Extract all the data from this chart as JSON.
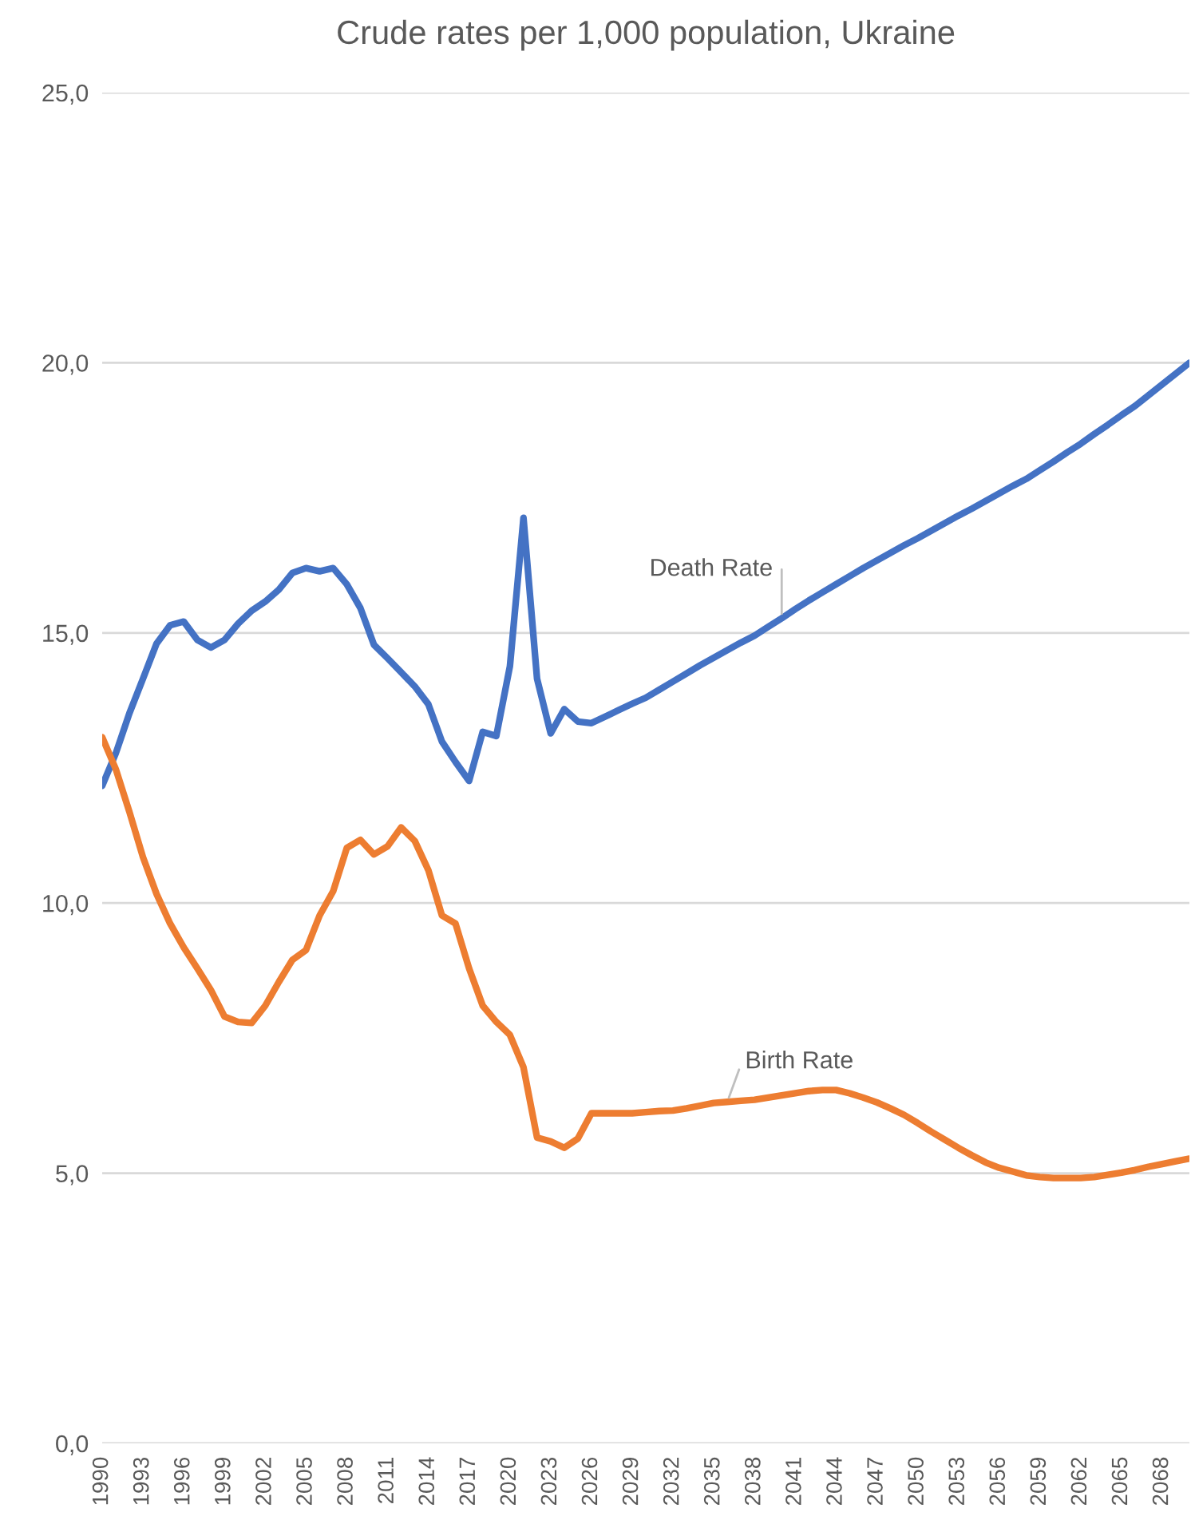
{
  "chart_data": {
    "type": "line",
    "title": "Crude rates per 1,000 population, Ukraine",
    "x": [
      1990,
      1991,
      1992,
      1993,
      1994,
      1995,
      1996,
      1997,
      1998,
      1999,
      2000,
      2001,
      2002,
      2003,
      2004,
      2005,
      2006,
      2007,
      2008,
      2009,
      2010,
      2011,
      2012,
      2013,
      2014,
      2015,
      2016,
      2017,
      2018,
      2019,
      2020,
      2021,
      2022,
      2023,
      2024,
      2025,
      2026,
      2027,
      2028,
      2029,
      2030,
      2031,
      2032,
      2033,
      2034,
      2035,
      2036,
      2037,
      2038,
      2039,
      2040,
      2041,
      2042,
      2043,
      2044,
      2045,
      2046,
      2047,
      2048,
      2049,
      2050,
      2051,
      2052,
      2053,
      2054,
      2055,
      2056,
      2057,
      2058,
      2059,
      2060,
      2061,
      2062,
      2063,
      2064,
      2065,
      2066,
      2067,
      2068,
      2069,
      2070
    ],
    "series": [
      {
        "name": "Death Rate",
        "color": "#4472c4",
        "values": [
          12.17,
          12.77,
          13.51,
          14.15,
          14.8,
          15.14,
          15.21,
          14.87,
          14.73,
          14.87,
          15.17,
          15.41,
          15.58,
          15.8,
          16.11,
          16.2,
          16.14,
          16.2,
          15.9,
          15.46,
          14.78,
          14.53,
          14.27,
          14.01,
          13.68,
          12.99,
          12.61,
          12.26,
          13.17,
          13.09,
          14.38,
          17.13,
          14.15,
          13.14,
          13.59,
          13.36,
          13.33,
          13.45,
          13.57,
          13.69,
          13.8,
          13.95,
          14.1,
          14.25,
          14.4,
          14.54,
          14.68,
          14.82,
          14.95,
          15.11,
          15.27,
          15.44,
          15.6,
          15.75,
          15.9,
          16.05,
          16.2,
          16.34,
          16.48,
          16.62,
          16.75,
          16.89,
          17.03,
          17.17,
          17.3,
          17.44,
          17.58,
          17.72,
          17.85,
          18.01,
          18.17,
          18.34,
          18.5,
          18.68,
          18.85,
          19.03,
          19.2,
          19.4,
          19.6,
          19.8,
          20.0
        ]
      },
      {
        "name": "Birth Rate",
        "color": "#ed7d31",
        "values": [
          13.07,
          12.48,
          11.69,
          10.85,
          10.17,
          9.62,
          9.18,
          8.79,
          8.39,
          7.9,
          7.8,
          7.78,
          8.1,
          8.54,
          8.95,
          9.13,
          9.77,
          10.22,
          11.02,
          11.17,
          10.9,
          11.05,
          11.4,
          11.15,
          10.61,
          9.77,
          9.62,
          8.79,
          8.1,
          7.8,
          7.56,
          6.96,
          5.66,
          5.59,
          5.47,
          5.64,
          6.11,
          6.11,
          6.11,
          6.11,
          6.13,
          6.15,
          6.16,
          6.2,
          6.25,
          6.3,
          6.32,
          6.34,
          6.36,
          6.4,
          6.44,
          6.48,
          6.52,
          6.54,
          6.54,
          6.48,
          6.4,
          6.31,
          6.2,
          6.08,
          5.93,
          5.77,
          5.62,
          5.47,
          5.33,
          5.2,
          5.1,
          5.03,
          4.96,
          4.93,
          4.91,
          4.91,
          4.91,
          4.93,
          4.97,
          5.01,
          5.06,
          5.12,
          5.17,
          5.22,
          5.27
        ]
      }
    ],
    "xlim": [
      1990,
      2070
    ],
    "xticks": [
      1990,
      1993,
      1996,
      1999,
      2002,
      2005,
      2008,
      2011,
      2014,
      2017,
      2020,
      2023,
      2026,
      2029,
      2032,
      2035,
      2038,
      2041,
      2044,
      2047,
      2050,
      2053,
      2056,
      2059,
      2062,
      2065,
      2068
    ],
    "ylim": [
      0,
      25
    ],
    "yticks": [
      {
        "value": 0,
        "label": "0,0"
      },
      {
        "value": 5,
        "label": "5,0"
      },
      {
        "value": 10,
        "label": "10,0"
      },
      {
        "value": 15,
        "label": "15,0"
      },
      {
        "value": 20,
        "label": "20,0"
      },
      {
        "value": 25,
        "label": "25,0"
      }
    ],
    "grid": "y",
    "legend": false,
    "marker": "none",
    "line_style": "solid"
  }
}
